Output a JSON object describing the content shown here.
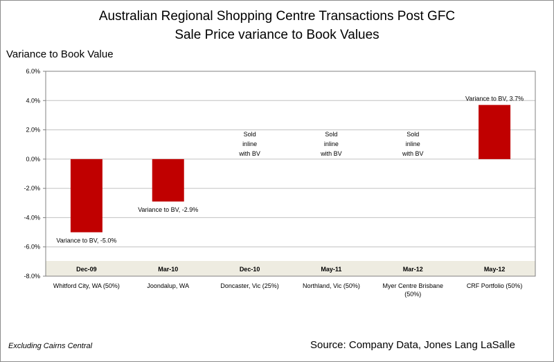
{
  "title_line1": "Australian Regional Shopping Centre Transactions Post GFC",
  "title_line2": "Sale Price variance to Book Values",
  "footnote": "Excluding Cairns Central",
  "source": "Source: Company Data, Jones Lang LaSalle",
  "colors": {
    "bar": "#c00000",
    "band": "#eeece1",
    "grid": "#c0c0c0"
  },
  "chart_data": {
    "type": "bar",
    "ylabel": "Variance to Book Value",
    "ylim": [
      -8,
      6
    ],
    "yticks": [
      6,
      4,
      2,
      0,
      -2,
      -4,
      -6,
      -8
    ],
    "ytick_labels": [
      "6.0%",
      "4.0%",
      "2.0%",
      "0.0%",
      "-2.0%",
      "-4.0%",
      "-6.0%",
      "-8.0%"
    ],
    "grid": true,
    "dates": [
      "Dec-09",
      "Mar-10",
      "Dec-10",
      "May-11",
      "Mar-12",
      "May-12"
    ],
    "categories": [
      "Whitford City, WA (50%)",
      "Joondalup, WA",
      "Doncaster, Vic (25%)",
      "Northland, Vic (50%)",
      "Myer Centre Brisbane (50%)",
      "CRF Portfolio (50%)"
    ],
    "category_lines": [
      [
        "Whitford City, WA (50%)"
      ],
      [
        "Joondalup, WA"
      ],
      [
        "Doncaster, Vic (25%)"
      ],
      [
        "Northland, Vic (50%)"
      ],
      [
        "Myer Centre Brisbane",
        "(50%)"
      ],
      [
        "CRF Portfolio (50%)"
      ]
    ],
    "values": [
      -5.0,
      -2.9,
      0,
      0,
      0,
      3.7
    ],
    "annotations": [
      [
        "Variance to BV, -5.0%"
      ],
      [
        "Variance to BV, -2.9%"
      ],
      [
        "Sold",
        "inline",
        "with BV"
      ],
      [
        "Sold",
        "inline",
        "with BV"
      ],
      [
        "Sold",
        "inline",
        "with BV"
      ],
      [
        "Variance to BV, 3.7%"
      ]
    ]
  }
}
